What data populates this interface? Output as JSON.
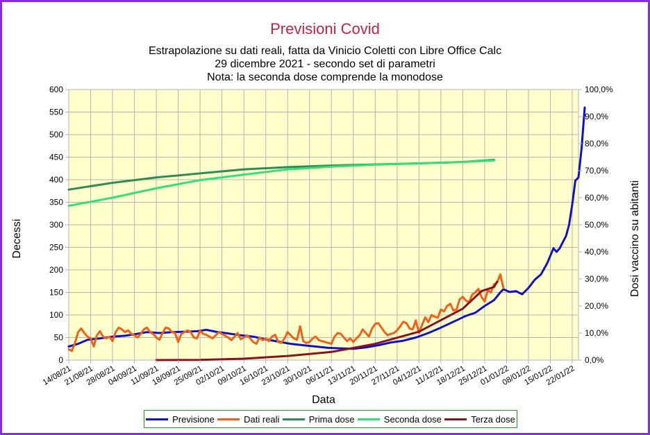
{
  "chart_data": {
    "type": "line",
    "title": "Previsioni Covid",
    "subtitle": [
      "Estrapolazione su dati reali, fatta da Vinicio Coletti con Libre Office Calc",
      "29 dicembre 2021 - secondo set di parametri",
      "Nota: la seconda dose comprende la monodose"
    ],
    "xlabel": "Data",
    "ylabel": "Decessi",
    "y2label": "Dosi vaccino su abitanti",
    "x_start": "14/08/21",
    "x_end": "24/01/22",
    "x_ticks": [
      "14/08/21",
      "21/08/21",
      "28/08/21",
      "04/09/21",
      "11/09/21",
      "18/09/21",
      "25/09/21",
      "02/10/21",
      "09/10/21",
      "16/10/21",
      "23/10/21",
      "30/10/21",
      "06/11/21",
      "13/11/21",
      "20/11/21",
      "27/11/21",
      "04/12/21",
      "11/12/21",
      "18/12/21",
      "25/12/21",
      "01/01/22",
      "08/01/22",
      "15/01/22",
      "22/01/22"
    ],
    "ylim": [
      0,
      600
    ],
    "y_ticks": [
      0,
      50,
      100,
      150,
      200,
      250,
      300,
      350,
      400,
      450,
      500,
      550,
      600
    ],
    "y2lim": [
      0,
      100
    ],
    "y2_ticks": [
      "0,0%",
      "10,0%",
      "20,0%",
      "30,0%",
      "40,0%",
      "50,0%",
      "60,0%",
      "70,0%",
      "80,0%",
      "90,0%",
      "100,0%"
    ],
    "grid": true,
    "legend_position": "bottom",
    "series": [
      {
        "name": "Previsione",
        "color": "#1010c8",
        "axis": "left",
        "points": [
          [
            "14/08/21",
            30
          ],
          [
            "17/08/21",
            36
          ],
          [
            "20/08/21",
            45
          ],
          [
            "24/08/21",
            48
          ],
          [
            "28/08/21",
            52
          ],
          [
            "01/09/21",
            54
          ],
          [
            "04/09/21",
            57
          ],
          [
            "08/09/21",
            62
          ],
          [
            "12/09/21",
            60
          ],
          [
            "16/09/21",
            62
          ],
          [
            "20/09/21",
            63
          ],
          [
            "24/09/21",
            64
          ],
          [
            "27/09/21",
            67
          ],
          [
            "30/09/21",
            63
          ],
          [
            "04/10/21",
            59
          ],
          [
            "08/10/21",
            55
          ],
          [
            "12/10/21",
            52
          ],
          [
            "16/10/21",
            46
          ],
          [
            "20/10/21",
            41
          ],
          [
            "24/10/21",
            36
          ],
          [
            "28/10/21",
            33
          ],
          [
            "01/11/21",
            30
          ],
          [
            "05/11/21",
            27
          ],
          [
            "09/11/21",
            26
          ],
          [
            "13/11/21",
            25
          ],
          [
            "17/11/21",
            28
          ],
          [
            "21/11/21",
            33
          ],
          [
            "25/11/21",
            39
          ],
          [
            "29/11/21",
            43
          ],
          [
            "03/12/21",
            50
          ],
          [
            "07/12/21",
            60
          ],
          [
            "11/12/21",
            72
          ],
          [
            "15/12/21",
            85
          ],
          [
            "19/12/21",
            98
          ],
          [
            "22/12/21",
            105
          ],
          [
            "25/12/21",
            120
          ],
          [
            "28/12/21",
            133
          ],
          [
            "30/12/21",
            150
          ],
          [
            "31/12/21",
            157
          ],
          [
            "02/01/22",
            151
          ],
          [
            "04/01/22",
            153
          ],
          [
            "06/01/22",
            146
          ],
          [
            "08/01/22",
            160
          ],
          [
            "10/01/22",
            178
          ],
          [
            "12/01/22",
            190
          ],
          [
            "14/01/22",
            215
          ],
          [
            "16/01/22",
            248
          ],
          [
            "17/01/22",
            240
          ],
          [
            "18/01/22",
            248
          ],
          [
            "20/01/22",
            275
          ],
          [
            "21/01/22",
            300
          ],
          [
            "22/01/22",
            345
          ],
          [
            "23/01/22",
            398
          ],
          [
            "24/01/22",
            405
          ],
          [
            "25/01/22",
            470
          ],
          [
            "26/01/22",
            560
          ]
        ]
      },
      {
        "name": "Dati reali",
        "color": "#f06018",
        "axis": "left",
        "values": [
          24,
          20,
          38,
          62,
          70,
          60,
          52,
          48,
          30,
          55,
          64,
          52,
          48,
          52,
          42,
          62,
          72,
          68,
          62,
          66,
          58,
          55,
          50,
          58,
          68,
          72,
          62,
          58,
          50,
          45,
          60,
          72,
          70,
          62,
          60,
          40,
          58,
          62,
          66,
          62,
          50,
          48,
          65,
          58,
          56,
          52,
          48,
          55,
          62,
          58,
          54,
          50,
          44,
          52,
          60,
          46,
          50,
          55,
          48,
          40,
          36,
          50,
          44,
          48,
          42,
          52,
          56,
          40,
          38,
          48,
          62,
          55,
          48,
          45,
          75,
          42,
          38,
          40,
          48,
          52,
          44,
          42,
          40,
          38,
          36,
          52,
          60,
          58,
          50,
          42,
          48,
          40,
          48,
          55,
          68,
          60,
          52,
          70,
          80,
          82,
          72,
          62,
          55,
          58,
          60,
          66,
          75,
          85,
          82,
          70,
          68,
          88,
          60,
          78,
          95,
          84,
          100,
          96,
          94,
          112,
          108,
          120,
          125,
          110,
          112,
          135,
          140,
          132,
          128,
          145,
          150,
          158,
          140,
          130,
          155,
          150,
          168,
          172,
          190,
          160
        ]
      },
      {
        "name": "Prima dose",
        "color": "#2e8b57",
        "axis": "right",
        "points": [
          [
            "14/08/21",
            63.0
          ],
          [
            "28/08/21",
            65.5
          ],
          [
            "11/09/21",
            67.5
          ],
          [
            "25/09/21",
            69.0
          ],
          [
            "09/10/21",
            70.5
          ],
          [
            "23/10/21",
            71.3
          ],
          [
            "06/11/21",
            71.9
          ],
          [
            "20/11/21",
            72.3
          ],
          [
            "04/12/21",
            72.7
          ],
          [
            "18/12/21",
            73.2
          ],
          [
            "28/12/21",
            74.0
          ]
        ]
      },
      {
        "name": "Seconda dose",
        "color": "#32e07a",
        "axis": "right",
        "points": [
          [
            "14/08/21",
            57.0
          ],
          [
            "28/08/21",
            60.0
          ],
          [
            "11/09/21",
            63.5
          ],
          [
            "25/09/21",
            66.5
          ],
          [
            "09/10/21",
            68.5
          ],
          [
            "23/10/21",
            70.5
          ],
          [
            "06/11/21",
            71.5
          ],
          [
            "20/11/21",
            72.2
          ],
          [
            "04/12/21",
            72.7
          ],
          [
            "18/12/21",
            73.2
          ],
          [
            "28/12/21",
            73.8
          ]
        ]
      },
      {
        "name": "Terza dose",
        "color": "#8b1020",
        "axis": "right",
        "points": [
          [
            "11/09/21",
            0.0
          ],
          [
            "25/09/21",
            0.05
          ],
          [
            "09/10/21",
            0.5
          ],
          [
            "23/10/21",
            1.5
          ],
          [
            "06/11/21",
            3.0
          ],
          [
            "20/11/21",
            6.0
          ],
          [
            "04/12/21",
            10.5
          ],
          [
            "18/12/21",
            19.0
          ],
          [
            "24/12/21",
            25.5
          ],
          [
            "28/12/21",
            27.0
          ],
          [
            "29/12/21",
            29.0
          ]
        ]
      }
    ]
  }
}
